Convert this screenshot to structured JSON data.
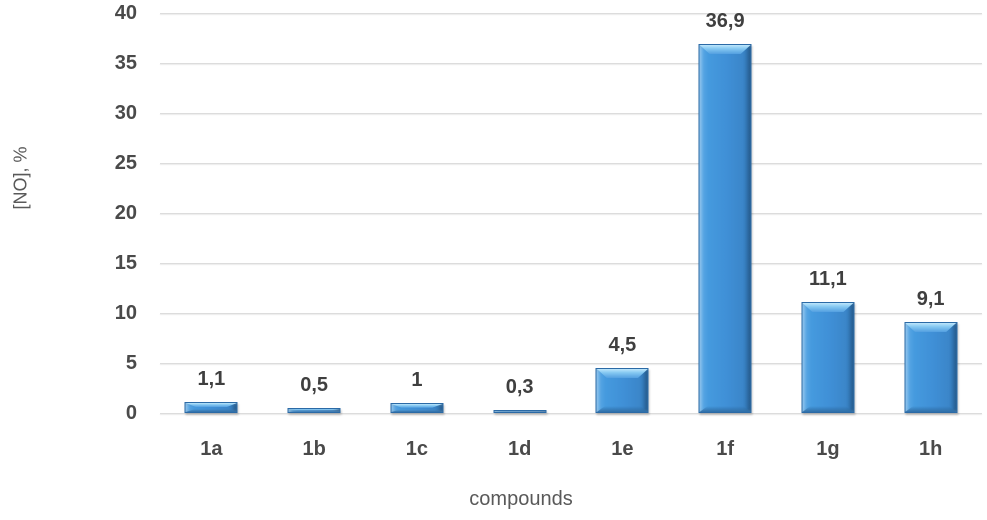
{
  "chart_data": {
    "type": "bar",
    "title": "",
    "xlabel": "compounds",
    "ylabel": "[NO], %",
    "categories": [
      "1a",
      "1b",
      "1c",
      "1d",
      "1e",
      "1f",
      "1g",
      "1h"
    ],
    "values": [
      1.1,
      0.5,
      1,
      0.3,
      4.5,
      36.9,
      11.1,
      9.1
    ],
    "value_labels": [
      "1,1",
      "0,5",
      "1",
      "0,3",
      "4,5",
      "36,9",
      "11,1",
      "9,1"
    ],
    "ylim": [
      0,
      40
    ],
    "yticks": [
      40,
      35,
      30,
      25,
      20,
      15,
      10,
      5,
      0
    ],
    "grid": true,
    "legend": false,
    "bar_color": "#3f8fd6",
    "bar_border_color": "#2b6aa6",
    "bar_highlight_color": "#bde6fb",
    "label_color": "#3f3f3f",
    "tick_color": "#4a4a4a",
    "axis_title_color": "#595959",
    "gridline_color": "#dcdcdc"
  }
}
